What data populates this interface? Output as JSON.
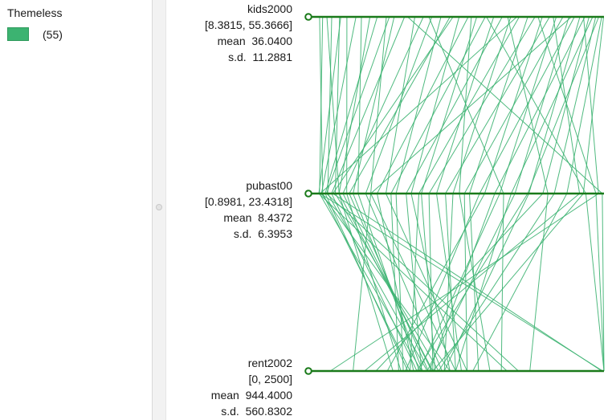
{
  "legend": {
    "title": "Themeless",
    "items": [
      {
        "count_label": "(55)",
        "color": "#3cb371"
      }
    ]
  },
  "line_color": "#3cb371",
  "axis_color": "#1a7a1a",
  "chart_data": {
    "type": "parallel-coordinates",
    "axes": [
      {
        "name": "kids2000",
        "range_label": "[8.3815, 55.3666]",
        "mean_label": "mean  36.0400",
        "sd_label": "s.d.  11.2881",
        "min": 8.3815,
        "max": 55.3666
      },
      {
        "name": "pubast00",
        "range_label": "[0.8981, 23.4318]",
        "mean_label": "mean  8.4372",
        "sd_label": "s.d.  6.3953",
        "min": 0.8981,
        "max": 23.4318
      },
      {
        "name": "rent2002",
        "range_label": "[0, 2500]",
        "mean_label": "mean  944.4000",
        "sd_label": "s.d.  560.8302",
        "min": 0,
        "max": 2500
      }
    ],
    "records": [
      [
        8.5,
        1.2,
        800
      ],
      [
        9.0,
        0.95,
        900
      ],
      [
        9.7,
        2.5,
        650
      ],
      [
        10.5,
        1.6,
        950
      ],
      [
        11.8,
        2.2,
        1050
      ],
      [
        13.0,
        3.1,
        720
      ],
      [
        14.5,
        1.1,
        1150
      ],
      [
        15.4,
        4.0,
        880
      ],
      [
        16.8,
        2.5,
        1000
      ],
      [
        18.0,
        1.4,
        780
      ],
      [
        19.5,
        5.0,
        1200
      ],
      [
        20.8,
        3.6,
        910
      ],
      [
        22.5,
        1.9,
        860
      ],
      [
        24.2,
        6.2,
        1300
      ],
      [
        25.6,
        2.8,
        990
      ],
      [
        27.0,
        4.6,
        1080
      ],
      [
        28.5,
        7.0,
        740
      ],
      [
        30.0,
        3.3,
        960
      ],
      [
        31.5,
        8.2,
        1150
      ],
      [
        33.0,
        5.5,
        830
      ],
      [
        34.4,
        9.0,
        1020
      ],
      [
        35.8,
        6.6,
        700
      ],
      [
        37.2,
        10.2,
        1250
      ],
      [
        38.6,
        7.8,
        900
      ],
      [
        40.0,
        11.5,
        1100
      ],
      [
        41.4,
        8.8,
        800
      ],
      [
        42.8,
        12.8,
        1400
      ],
      [
        44.0,
        9.6,
        1000
      ],
      [
        45.2,
        14.0,
        600
      ],
      [
        46.4,
        10.9,
        1200
      ],
      [
        47.5,
        15.2,
        880
      ],
      [
        48.6,
        12.4,
        1300
      ],
      [
        49.6,
        16.4,
        950
      ],
      [
        50.5,
        13.6,
        760
      ],
      [
        51.4,
        17.5,
        1100
      ],
      [
        52.2,
        14.8,
        970
      ],
      [
        52.9,
        18.6,
        500
      ],
      [
        53.5,
        16.1,
        1200
      ],
      [
        54.0,
        19.5,
        1050
      ],
      [
        54.5,
        17.4,
        860
      ],
      [
        55.0,
        20.5,
        1350
      ],
      [
        55.3,
        21.8,
        1000
      ],
      [
        23.0,
        23.3,
        2500
      ],
      [
        36.0,
        22.0,
        2500
      ],
      [
        44.5,
        22.8,
        2500
      ],
      [
        30.5,
        2.0,
        2480
      ],
      [
        41.0,
        1.0,
        2490
      ],
      [
        52.0,
        23.0,
        100
      ],
      [
        47.0,
        21.5,
        400
      ],
      [
        12.0,
        0.9,
        1650
      ],
      [
        20.0,
        1.5,
        1750
      ],
      [
        33.5,
        12.0,
        1500
      ],
      [
        39.5,
        19.0,
        1850
      ],
      [
        50.0,
        5.0,
        300
      ],
      [
        26.5,
        15.5,
        1600
      ]
    ]
  }
}
